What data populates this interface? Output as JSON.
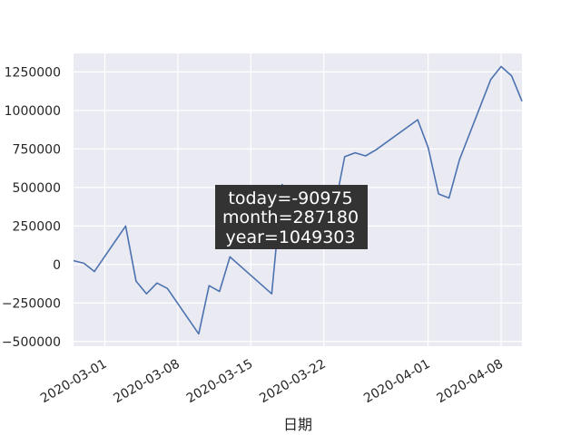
{
  "chart_data": {
    "type": "line",
    "title": "",
    "xlabel": "日期",
    "ylabel": "",
    "x_range": [
      "2020-02-27",
      "2020-04-10"
    ],
    "ylim": [
      -530000,
      1370000
    ],
    "grid": true,
    "colors": {
      "plot_background": "#eaeaf2",
      "grid": "#ffffff",
      "line": "#4c72b0",
      "annotation_background": "#333333",
      "annotation_text": "#ffffff"
    },
    "y_ticks": [
      {
        "value": -500000,
        "label": "−500000"
      },
      {
        "value": -250000,
        "label": "−250000"
      },
      {
        "value": 0,
        "label": "0"
      },
      {
        "value": 250000,
        "label": "250000"
      },
      {
        "value": 500000,
        "label": "500000"
      },
      {
        "value": 750000,
        "label": "750000"
      },
      {
        "value": 1000000,
        "label": "1000000"
      },
      {
        "value": 1250000,
        "label": "1250000"
      }
    ],
    "x_ticks": [
      {
        "value": "2020-03-01",
        "label": "2020-03-01"
      },
      {
        "value": "2020-03-08",
        "label": "2020-03-08"
      },
      {
        "value": "2020-03-15",
        "label": "2020-03-15"
      },
      {
        "value": "2020-03-22",
        "label": "2020-03-22"
      },
      {
        "value": "2020-04-01",
        "label": "2020-04-01"
      },
      {
        "value": "2020-04-08",
        "label": "2020-04-08"
      }
    ],
    "series": [
      {
        "x": [
          "2020-02-27",
          "2020-02-28",
          "2020-02-29",
          "2020-03-03",
          "2020-03-04",
          "2020-03-05",
          "2020-03-06",
          "2020-03-07",
          "2020-03-10",
          "2020-03-11",
          "2020-03-12",
          "2020-03-13",
          "2020-03-17",
          "2020-03-18",
          "2020-03-19",
          "2020-03-20",
          "2020-03-21",
          "2020-03-23",
          "2020-03-24",
          "2020-03-25",
          "2020-03-26",
          "2020-03-27",
          "2020-03-31",
          "2020-04-01",
          "2020-04-02",
          "2020-04-03",
          "2020-04-04",
          "2020-04-07",
          "2020-04-08",
          "2020-04-09",
          "2020-04-10"
        ],
        "y": [
          25000,
          8000,
          -45000,
          250000,
          -108000,
          -190000,
          -120000,
          -155000,
          -450000,
          -137000,
          -175000,
          50000,
          -190000,
          520000,
          360000,
          475000,
          420000,
          355000,
          700000,
          725000,
          705000,
          745000,
          940000,
          760000,
          458000,
          432000,
          680000,
          1200000,
          1285000,
          1225000,
          1060000
        ]
      }
    ],
    "annotation": {
      "lines": [
        "today=-90975",
        "month=287180",
        "year=1049303"
      ]
    }
  }
}
